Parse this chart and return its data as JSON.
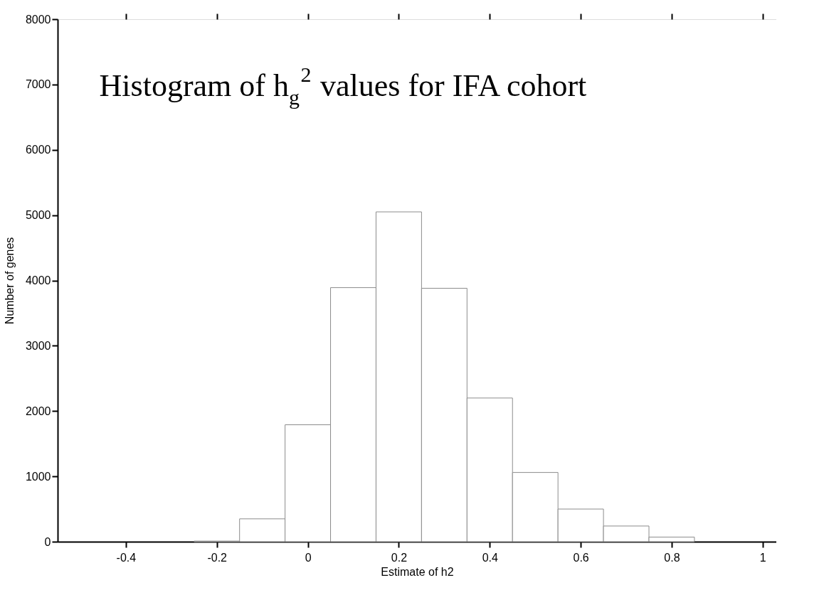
{
  "chart_data": {
    "type": "histogram",
    "title": "Histogram of h$_{g}$$^{2}$ values for IFA cohort",
    "xlabel": "Estimate of h2",
    "ylabel": "Number of genes",
    "bins": [
      -0.25,
      -0.15,
      -0.05,
      0.05,
      0.15,
      0.25,
      0.35,
      0.45,
      0.55,
      0.65,
      0.75,
      0.85
    ],
    "values": [
      10,
      350,
      1790,
      3890,
      5050,
      3880,
      2200,
      1060,
      500,
      240,
      70
    ],
    "color": "#ffffff",
    "xlim": [
      -0.55,
      1.03
    ],
    "ylim": [
      0,
      8000
    ],
    "xticks": [
      -0.4,
      -0.2,
      0,
      0.2,
      0.4,
      0.6,
      0.8,
      1
    ],
    "yticks": [
      0,
      1000,
      2000,
      3000,
      4000,
      5000,
      6000,
      7000,
      8000
    ],
    "grid": false
  }
}
